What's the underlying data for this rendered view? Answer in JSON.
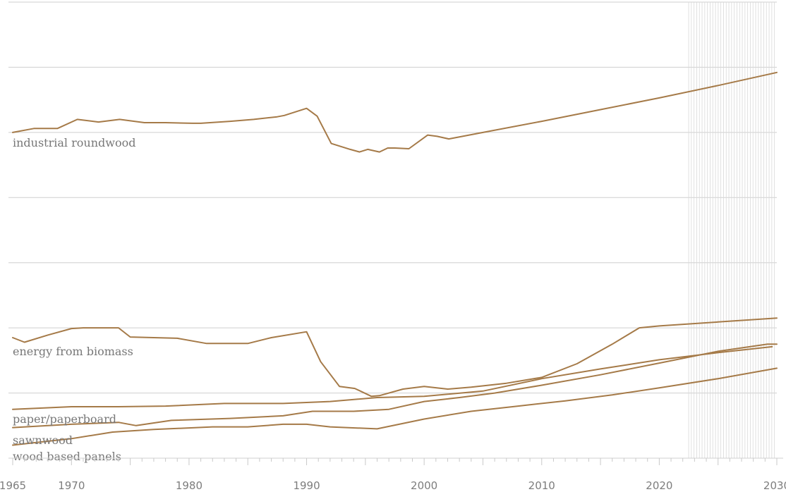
{
  "chart_data": {
    "type": "line",
    "title": "",
    "xlabel": "",
    "ylabel": "",
    "xlim": [
      1965,
      2030
    ],
    "ylim": [
      0,
      7
    ],
    "y_grid": true,
    "y_tick_labels_shown": false,
    "projection_shading_from": 2022.5,
    "x_ticks": [
      1965,
      1970,
      1980,
      1990,
      2000,
      2010,
      2020,
      2030
    ],
    "x_tick_labels": [
      "1965",
      "1970",
      "1980",
      "1990",
      "2000",
      "2010",
      "2020",
      "2030"
    ],
    "line_color": "#a57a48",
    "series": [
      {
        "name": "industrial roundwood",
        "points": [
          [
            1965,
            5.0
          ],
          [
            1966.8,
            5.06
          ],
          [
            1968.8,
            5.06
          ],
          [
            1970.5,
            5.2
          ],
          [
            1972.3,
            5.16
          ],
          [
            1974.1,
            5.2
          ],
          [
            1976.2,
            5.15
          ],
          [
            1978,
            5.15
          ],
          [
            1980.3,
            5.14
          ],
          [
            1981,
            5.14
          ],
          [
            1983.5,
            5.17
          ],
          [
            1985.5,
            5.2
          ],
          [
            1987.5,
            5.24
          ],
          [
            1988.1,
            5.26
          ],
          [
            1990,
            5.37
          ],
          [
            1990.9,
            5.25
          ],
          [
            1992.1,
            4.83
          ],
          [
            1993.7,
            4.74
          ],
          [
            1994.5,
            4.7
          ],
          [
            1995.2,
            4.74
          ],
          [
            1996.2,
            4.7
          ],
          [
            1996.9,
            4.76
          ],
          [
            1997.5,
            4.76
          ],
          [
            1998.7,
            4.75
          ],
          [
            2000.3,
            4.96
          ],
          [
            2001.1,
            4.94
          ],
          [
            2002.1,
            4.9
          ],
          [
            2005,
            5.0
          ],
          [
            2010,
            5.17
          ],
          [
            2015,
            5.35
          ],
          [
            2020,
            5.53
          ],
          [
            2025,
            5.72
          ],
          [
            2030,
            5.92
          ]
        ]
      },
      {
        "name": "energy from biomass",
        "points": [
          [
            1965,
            1.85
          ],
          [
            1966,
            1.78
          ],
          [
            1968,
            1.89
          ],
          [
            1970,
            1.99
          ],
          [
            1971,
            2.0
          ],
          [
            1973,
            2.0
          ],
          [
            1974,
            2.0
          ],
          [
            1975,
            1.86
          ],
          [
            1979,
            1.84
          ],
          [
            1981.5,
            1.76
          ],
          [
            1985,
            1.76
          ],
          [
            1987,
            1.85
          ],
          [
            1990,
            1.94
          ],
          [
            1991.2,
            1.48
          ],
          [
            1992.8,
            1.1
          ],
          [
            1994.1,
            1.07
          ],
          [
            1995.5,
            0.95
          ],
          [
            1996.2,
            0.96
          ],
          [
            1998.2,
            1.06
          ],
          [
            2000,
            1.1
          ],
          [
            2002,
            1.06
          ],
          [
            2004,
            1.09
          ],
          [
            2007,
            1.15
          ],
          [
            2010,
            1.24
          ],
          [
            2013,
            1.45
          ],
          [
            2016,
            1.75
          ],
          [
            2018.3,
            2.0
          ],
          [
            2020,
            2.03
          ],
          [
            2025,
            2.09
          ],
          [
            2030,
            2.15
          ]
        ]
      },
      {
        "name": "paper/paperboard",
        "points": [
          [
            1965,
            0.75
          ],
          [
            1970,
            0.79
          ],
          [
            1974,
            0.79
          ],
          [
            1978,
            0.8
          ],
          [
            1983,
            0.84
          ],
          [
            1988,
            0.84
          ],
          [
            1992,
            0.87
          ],
          [
            1996,
            0.93
          ],
          [
            2000,
            0.95
          ],
          [
            2005,
            1.03
          ],
          [
            2010,
            1.22
          ],
          [
            2015,
            1.37
          ],
          [
            2020,
            1.51
          ],
          [
            2025,
            1.62
          ],
          [
            2029.6,
            1.71
          ]
        ]
      },
      {
        "name": "sawnwood",
        "points": [
          [
            1965,
            0.47
          ],
          [
            1970,
            0.52
          ],
          [
            1974,
            0.55
          ],
          [
            1975.5,
            0.5
          ],
          [
            1978.5,
            0.58
          ],
          [
            1983.5,
            0.61
          ],
          [
            1988,
            0.65
          ],
          [
            1990.5,
            0.72
          ],
          [
            1994,
            0.72
          ],
          [
            1997,
            0.75
          ],
          [
            2000,
            0.87
          ],
          [
            2003,
            0.93
          ],
          [
            2006,
            1.0
          ],
          [
            2010,
            1.12
          ],
          [
            2015,
            1.28
          ],
          [
            2020,
            1.46
          ],
          [
            2025,
            1.64
          ],
          [
            2029.2,
            1.75
          ],
          [
            2030,
            1.75
          ]
        ]
      },
      {
        "name": "wood based panels",
        "points": [
          [
            1965,
            0.2
          ],
          [
            1970,
            0.3
          ],
          [
            1973.5,
            0.4
          ],
          [
            1977,
            0.44
          ],
          [
            1982,
            0.48
          ],
          [
            1985,
            0.48
          ],
          [
            1988,
            0.52
          ],
          [
            1990,
            0.52
          ],
          [
            1992,
            0.48
          ],
          [
            1996,
            0.45
          ],
          [
            2000,
            0.6
          ],
          [
            2004,
            0.72
          ],
          [
            2008,
            0.8
          ],
          [
            2012,
            0.88
          ],
          [
            2016,
            0.97
          ],
          [
            2020,
            1.08
          ],
          [
            2025,
            1.22
          ],
          [
            2030,
            1.38
          ]
        ]
      }
    ]
  }
}
